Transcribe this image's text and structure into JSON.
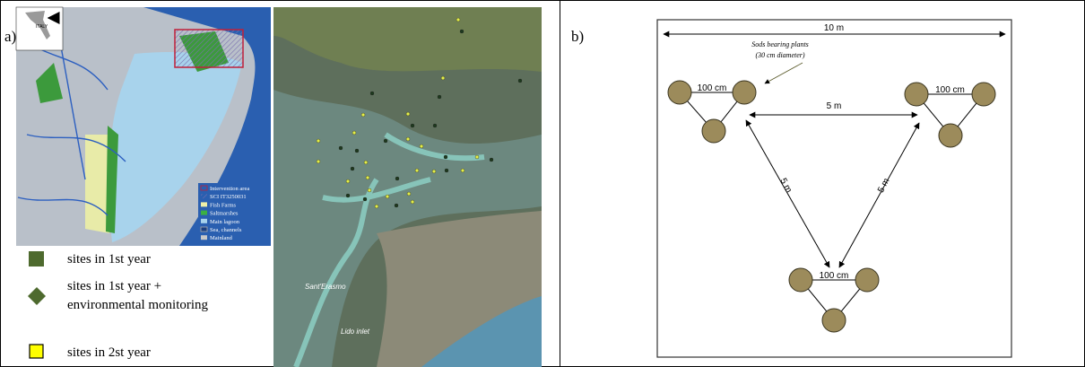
{
  "panel_a": {
    "label": "a)",
    "inset_label": "ITALY",
    "map_legend": [
      "Intervention area",
      "SCI IT3250031",
      "Fish Farms",
      "Saltmarshes",
      "Main lagoon",
      "Sea, channels",
      "Mainland"
    ],
    "site_legend": [
      [
        "sites in 1st year"
      ],
      [
        "sites in 1st year +",
        "environmental monitoring"
      ],
      [
        "sites in 2st year"
      ]
    ],
    "place_names": [
      "Sant'Erasmo",
      "Lido inlet"
    ]
  },
  "panel_b": {
    "label": "b)",
    "width_label": "10 m",
    "sods_note": [
      "Sods bearing plants",
      "(30 cm diameter)"
    ],
    "cluster_spacing": [
      "100 cm",
      "100 cm",
      "100 cm"
    ],
    "distances": [
      "5 m",
      "5 m",
      "5 m"
    ]
  }
}
